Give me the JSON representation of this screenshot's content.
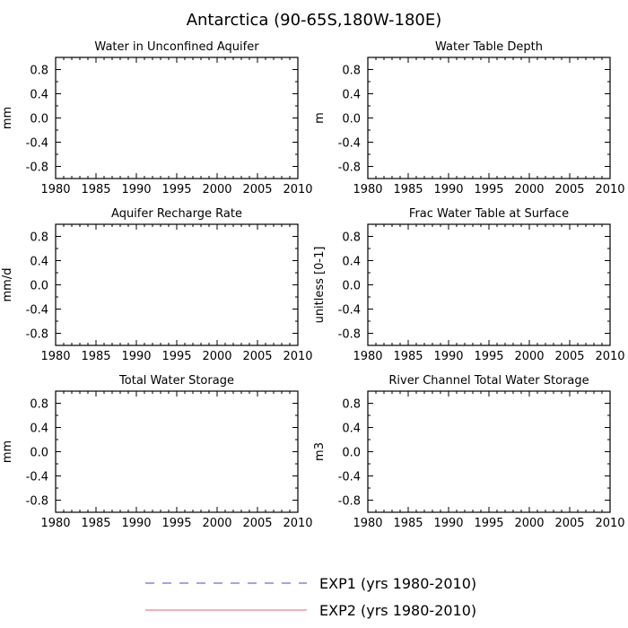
{
  "figure_title": "Antarctica (90-65S,180W-180E)",
  "legend": [
    {
      "label": "EXP1 (yrs 1980-2010)",
      "color": "#4a4ad6",
      "color2": "#e05a7a",
      "style": "dashed"
    },
    {
      "label": "EXP2 (yrs 1980-2010)",
      "color": "#e8607a",
      "style": "solid"
    }
  ],
  "chart_data": [
    {
      "type": "line",
      "title": "Water in Unconfined Aquifer",
      "ylabel": "mm",
      "xlim": [
        1980,
        2010
      ],
      "ylim": [
        -1,
        1
      ],
      "xticks": [
        1980,
        1985,
        1990,
        1995,
        2000,
        2005,
        2010
      ],
      "yticks": [
        "0.8",
        "0.4",
        "0.0",
        "-0.4",
        "-0.8"
      ],
      "series": []
    },
    {
      "type": "line",
      "title": "Water Table Depth",
      "ylabel": "m",
      "xlim": [
        1980,
        2010
      ],
      "ylim": [
        -1,
        1
      ],
      "xticks": [
        1980,
        1985,
        1990,
        1995,
        2000,
        2005,
        2010
      ],
      "yticks": [
        "0.8",
        "0.4",
        "0.0",
        "-0.4",
        "-0.8"
      ],
      "series": []
    },
    {
      "type": "line",
      "title": "Aquifer Recharge Rate",
      "ylabel": "mm/d",
      "xlim": [
        1980,
        2010
      ],
      "ylim": [
        -1,
        1
      ],
      "xticks": [
        1980,
        1985,
        1990,
        1995,
        2000,
        2005,
        2010
      ],
      "yticks": [
        "0.8",
        "0.4",
        "0.0",
        "-0.4",
        "-0.8"
      ],
      "series": []
    },
    {
      "type": "line",
      "title": "Frac Water Table at Surface",
      "ylabel": "unitless [0-1]",
      "xlim": [
        1980,
        2010
      ],
      "ylim": [
        -1,
        1
      ],
      "xticks": [
        1980,
        1985,
        1990,
        1995,
        2000,
        2005,
        2010
      ],
      "yticks": [
        "0.8",
        "0.4",
        "0.0",
        "-0.4",
        "-0.8"
      ],
      "series": []
    },
    {
      "type": "line",
      "title": "Total Water Storage",
      "ylabel": "mm",
      "xlim": [
        1980,
        2010
      ],
      "ylim": [
        -1,
        1
      ],
      "xticks": [
        1980,
        1985,
        1990,
        1995,
        2000,
        2005,
        2010
      ],
      "yticks": [
        "0.8",
        "0.4",
        "0.0",
        "-0.4",
        "-0.8"
      ],
      "series": []
    },
    {
      "type": "line",
      "title": "River Channel Total Water Storage",
      "ylabel": "m3",
      "xlim": [
        1980,
        2010
      ],
      "ylim": [
        -1,
        1
      ],
      "xticks": [
        1980,
        1985,
        1990,
        1995,
        2000,
        2005,
        2010
      ],
      "yticks": [
        "0.8",
        "0.4",
        "0.0",
        "-0.4",
        "-0.8"
      ],
      "series": []
    }
  ]
}
